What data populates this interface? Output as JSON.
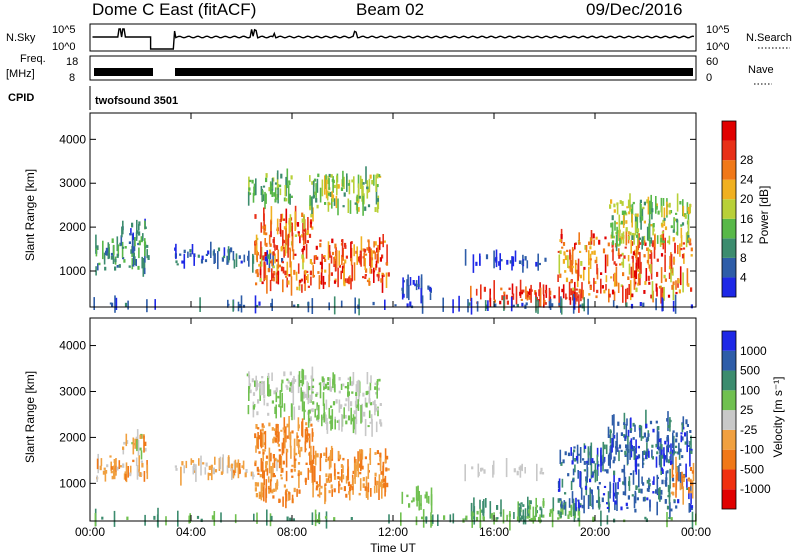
{
  "header": {
    "site": "Dome C East (fitACF)",
    "beam": "Beam 02",
    "date": "09/Dec/2016"
  },
  "params": {
    "nsky_label": "N.Sky",
    "nsky_ticks": [
      "10^5",
      "10^0"
    ],
    "nsearch_label": "N.Search",
    "nsearch_ticks": [
      "10^5",
      "10^0"
    ],
    "freq_label": "Freq.",
    "freq_unit": "[MHz]",
    "freq_ticks": [
      "18",
      "8"
    ],
    "nave_label": "Nave",
    "nave_ticks": [
      "60",
      "0"
    ],
    "cpid_label": "CPID",
    "cpid_value": "twofsound 3501"
  },
  "colors": {
    "power": [
      "#1e28e6",
      "#2e5da8",
      "#3c8c6e",
      "#58b848",
      "#b8d038",
      "#f0b020",
      "#f07818",
      "#e83018",
      "#e00000"
    ],
    "velocity": [
      "#e00000",
      "#f03010",
      "#f07818",
      "#f0a040",
      "#c8c8c8",
      "#70c050",
      "#3c8c6e",
      "#2e5da8",
      "#1e28e6"
    ]
  },
  "chart_data": [
    {
      "type": "heatmap",
      "name": "power",
      "ylabel": "Slant Range [km]",
      "x_ticks": [
        "00:00",
        "04:00",
        "08:00",
        "12:00",
        "16:00",
        "20:00",
        "00:00"
      ],
      "x_range_hours": [
        0,
        24
      ],
      "y_range_km": [
        180,
        4600
      ],
      "y_ticks": [
        1000,
        2000,
        3000,
        4000
      ],
      "grid": false,
      "colorbar": {
        "label": "Power [dB]",
        "ticks": [
          "4",
          "8",
          "12",
          "16",
          "20",
          "24",
          "28"
        ]
      },
      "regions": [
        {
          "t": [
            0.2,
            2.3
          ],
          "r": [
            1000,
            1700
          ],
          "level": [
            1,
            3
          ]
        },
        {
          "t": [
            1.2,
            2.2
          ],
          "r": [
            1700,
            2100
          ],
          "level": [
            0,
            3
          ]
        },
        {
          "t": [
            3.3,
            5.8
          ],
          "r": [
            1150,
            1500
          ],
          "level": [
            0,
            2
          ]
        },
        {
          "t": [
            5.5,
            7.6
          ],
          "r": [
            1150,
            1350
          ],
          "level": [
            0,
            3
          ]
        },
        {
          "t": [
            6.2,
            8.0
          ],
          "r": [
            2600,
            3200
          ],
          "level": [
            2,
            4
          ]
        },
        {
          "t": [
            6.5,
            8.8
          ],
          "r": [
            600,
            2300
          ],
          "level": [
            4,
            8
          ]
        },
        {
          "t": [
            8.8,
            11.8
          ],
          "r": [
            700,
            1700
          ],
          "level": [
            5,
            8
          ]
        },
        {
          "t": [
            8.6,
            11.5
          ],
          "r": [
            2400,
            3200
          ],
          "level": [
            2,
            5
          ]
        },
        {
          "t": [
            12.3,
            13.6
          ],
          "r": [
            400,
            800
          ],
          "level": [
            0,
            1
          ]
        },
        {
          "t": [
            14.8,
            18.0
          ],
          "r": [
            1150,
            1350
          ],
          "level": [
            0,
            1
          ]
        },
        {
          "t": [
            15.0,
            19.5
          ],
          "r": [
            250,
            600
          ],
          "level": [
            6,
            8
          ]
        },
        {
          "t": [
            18.5,
            23.8
          ],
          "r": [
            400,
            1800
          ],
          "level": [
            4,
            8
          ]
        },
        {
          "t": [
            20.5,
            23.8
          ],
          "r": [
            1600,
            2600
          ],
          "level": [
            2,
            5
          ]
        },
        {
          "t": [
            0.1,
            24.0
          ],
          "r": [
            180,
            260
          ],
          "level": [
            0,
            2
          ]
        }
      ]
    },
    {
      "type": "heatmap",
      "name": "velocity",
      "xlabel": "Time UT",
      "ylabel": "Slant Range [km]",
      "x_ticks": [
        "00:00",
        "04:00",
        "08:00",
        "12:00",
        "16:00",
        "20:00",
        "00:00"
      ],
      "x_range_hours": [
        0,
        24
      ],
      "y_range_km": [
        180,
        4600
      ],
      "y_ticks": [
        1000,
        2000,
        3000,
        4000
      ],
      "grid": false,
      "colorbar": {
        "label": "Velocity [m s⁻¹]",
        "ticks": [
          "1000",
          "500",
          "100",
          "25",
          "-25",
          "-100",
          "-500",
          "-1000"
        ]
      },
      "regions": [
        {
          "t": [
            0.2,
            2.3
          ],
          "r": [
            1100,
            1600
          ],
          "level": [
            2,
            4
          ]
        },
        {
          "t": [
            1.2,
            2.2
          ],
          "r": [
            1600,
            2100
          ],
          "level": [
            2,
            5
          ]
        },
        {
          "t": [
            3.3,
            5.8
          ],
          "r": [
            1150,
            1500
          ],
          "level": [
            3,
            4
          ]
        },
        {
          "t": [
            5.5,
            7.6
          ],
          "r": [
            1150,
            1400
          ],
          "level": [
            2,
            4
          ]
        },
        {
          "t": [
            6.2,
            8.8
          ],
          "r": [
            2500,
            3400
          ],
          "level": [
            4,
            5
          ]
        },
        {
          "t": [
            6.5,
            8.8
          ],
          "r": [
            600,
            2300
          ],
          "level": [
            2,
            3
          ]
        },
        {
          "t": [
            8.8,
            11.8
          ],
          "r": [
            700,
            1700
          ],
          "level": [
            2,
            3
          ]
        },
        {
          "t": [
            8.6,
            11.5
          ],
          "r": [
            2200,
            3300
          ],
          "level": [
            4,
            5
          ]
        },
        {
          "t": [
            12.3,
            13.6
          ],
          "r": [
            500,
            800
          ],
          "level": [
            5,
            5
          ]
        },
        {
          "t": [
            14.8,
            18.0
          ],
          "r": [
            1200,
            1350
          ],
          "level": [
            4,
            4
          ]
        },
        {
          "t": [
            15.0,
            19.5
          ],
          "r": [
            200,
            600
          ],
          "level": [
            5,
            6
          ]
        },
        {
          "t": [
            18.5,
            23.8
          ],
          "r": [
            400,
            1800
          ],
          "level": [
            6,
            8
          ]
        },
        {
          "t": [
            20.5,
            23.8
          ],
          "r": [
            1500,
            2400
          ],
          "level": [
            6,
            8
          ]
        },
        {
          "t": [
            23.0,
            23.9
          ],
          "r": [
            700,
            1400
          ],
          "level": [
            2,
            3
          ]
        },
        {
          "t": [
            0.1,
            24.0
          ],
          "r": [
            180,
            260
          ],
          "level": [
            5,
            6
          ]
        }
      ]
    }
  ]
}
